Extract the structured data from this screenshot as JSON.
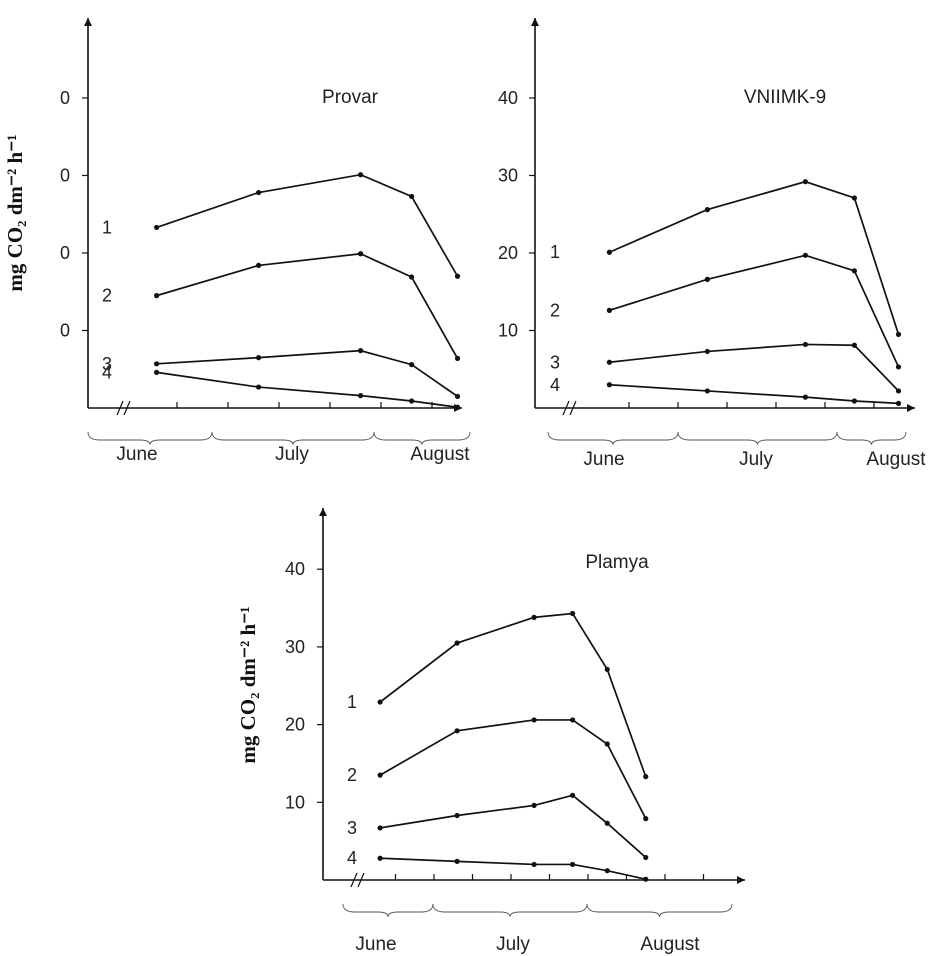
{
  "chart_data": [
    {
      "type": "line",
      "title": "Provar",
      "ylabel": "mg CO₂ dm⁻² h⁻¹",
      "y_ticks": [
        "0",
        "0",
        "0",
        "0"
      ],
      "x_groups": [
        "June",
        "July",
        "August"
      ],
      "ylim": [
        0,
        40
      ],
      "series": [
        {
          "label": "1",
          "x": [
            0.3,
            1.3,
            2.3,
            2.8,
            3.25
          ],
          "values": [
            23.3,
            27.8,
            30.1,
            27.3,
            17.0
          ]
        },
        {
          "label": "2",
          "x": [
            0.3,
            1.3,
            2.3,
            2.8,
            3.25
          ],
          "values": [
            14.5,
            18.4,
            19.9,
            16.9,
            6.4
          ]
        },
        {
          "label": "3",
          "x": [
            0.3,
            1.3,
            2.3,
            2.8,
            3.25
          ],
          "values": [
            5.7,
            6.5,
            7.4,
            5.6,
            1.5
          ]
        },
        {
          "label": "4",
          "x": [
            0.3,
            1.3,
            2.3,
            2.8,
            3.25
          ],
          "values": [
            4.6,
            2.7,
            1.6,
            0.9,
            0.1
          ]
        }
      ]
    },
    {
      "type": "line",
      "title": "VNIIMK-9",
      "ylabel": "",
      "y_ticks": [
        "40",
        "30",
        "20",
        "10"
      ],
      "x_groups": [
        "June",
        "July",
        "August"
      ],
      "ylim": [
        0,
        40
      ],
      "series": [
        {
          "label": "1",
          "x": [
            0.3,
            1.3,
            2.3,
            2.8,
            3.25
          ],
          "values": [
            20.1,
            25.6,
            29.2,
            27.1,
            9.5
          ]
        },
        {
          "label": "2",
          "x": [
            0.3,
            1.3,
            2.3,
            2.8,
            3.25
          ],
          "values": [
            12.6,
            16.6,
            19.7,
            17.7,
            5.3
          ]
        },
        {
          "label": "3",
          "x": [
            0.3,
            1.3,
            2.3,
            2.8,
            3.25
          ],
          "values": [
            5.9,
            7.3,
            8.2,
            8.1,
            2.2
          ]
        },
        {
          "label": "4",
          "x": [
            0.3,
            1.3,
            2.3,
            2.8,
            3.25
          ],
          "values": [
            3.0,
            2.2,
            1.4,
            0.9,
            0.6
          ]
        }
      ]
    },
    {
      "type": "line",
      "title": "Plamya",
      "ylabel": "mg CO₂ dm⁻² h⁻¹",
      "y_ticks": [
        "40",
        "30",
        "20",
        "10"
      ],
      "x_groups": [
        "June",
        "July",
        "August"
      ],
      "ylim": [
        0,
        40
      ],
      "series": [
        {
          "label": "1",
          "x": [
            0.3,
            1.3,
            2.3,
            2.8,
            3.25,
            3.75
          ],
          "values": [
            22.9,
            30.5,
            33.8,
            34.3,
            27.1,
            13.3
          ]
        },
        {
          "label": "2",
          "x": [
            0.3,
            1.3,
            2.3,
            2.8,
            3.25,
            3.75
          ],
          "values": [
            13.5,
            19.2,
            20.6,
            20.6,
            17.5,
            7.9
          ]
        },
        {
          "label": "3",
          "x": [
            0.3,
            1.3,
            2.3,
            2.8,
            3.25,
            3.75
          ],
          "values": [
            6.7,
            8.3,
            9.6,
            10.9,
            7.3,
            2.9
          ]
        },
        {
          "label": "4",
          "x": [
            0.3,
            1.3,
            2.3,
            2.8,
            3.25,
            3.75
          ],
          "values": [
            2.8,
            2.4,
            2.0,
            2.0,
            1.2,
            0.1
          ]
        }
      ]
    }
  ]
}
